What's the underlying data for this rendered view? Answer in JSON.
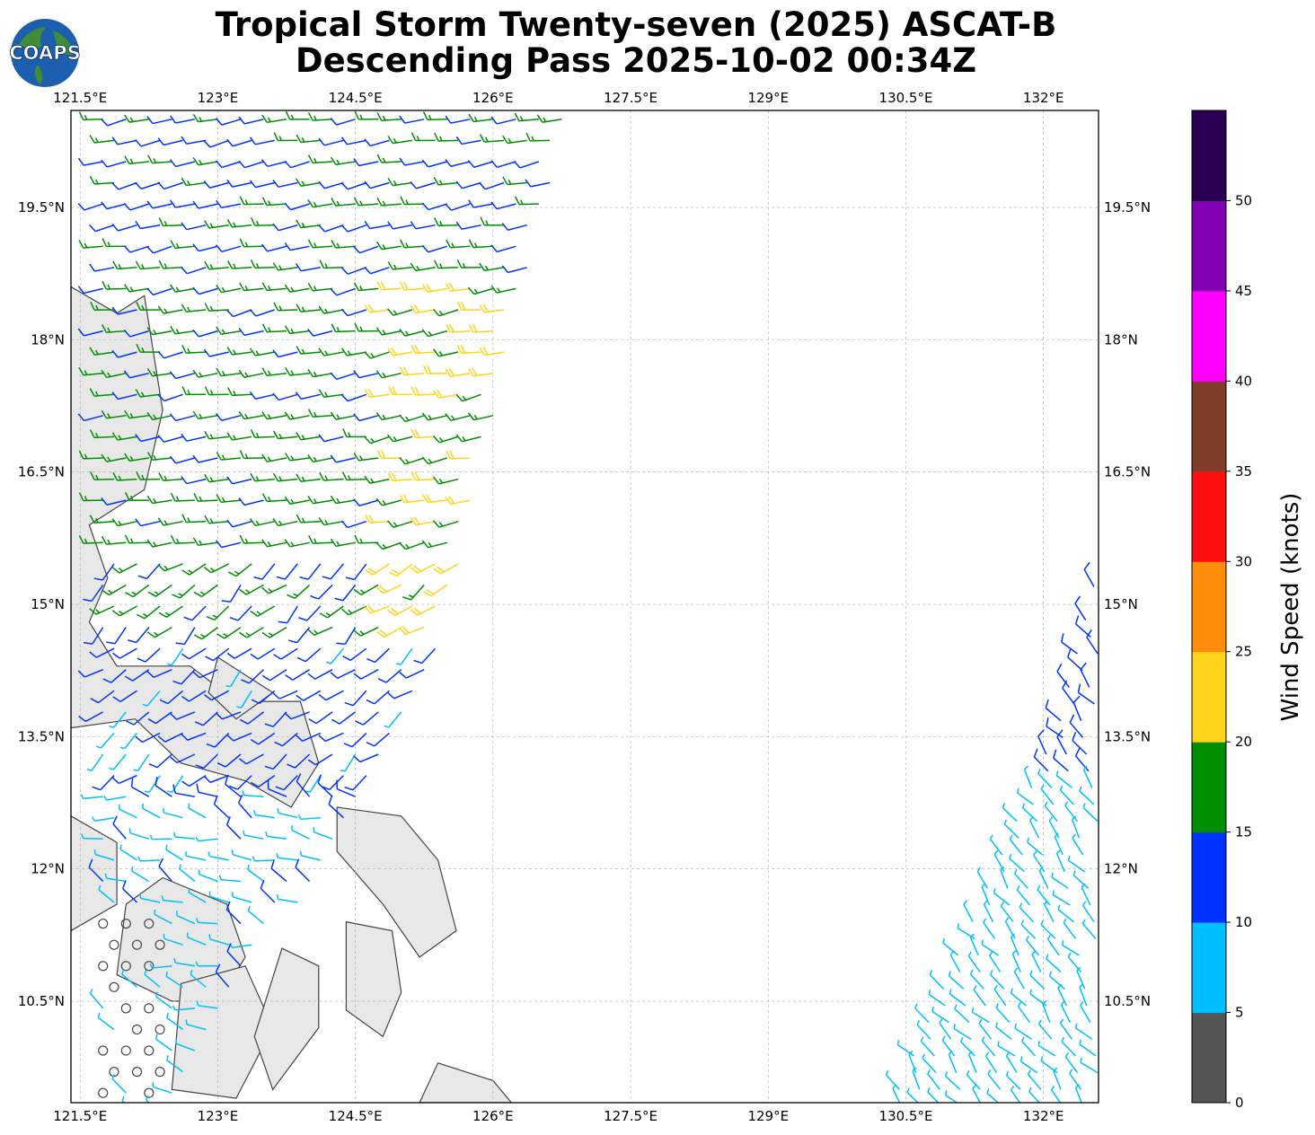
{
  "title_line1": "Tropical Storm Twenty-seven (2025) ASCAT-B",
  "title_line2": "Descending Pass 2025-10-02 00:34Z",
  "logo_text": "COAPS",
  "lon_ticks": [
    "121.5°E",
    "123°E",
    "124.5°E",
    "126°E",
    "127.5°E",
    "129°E",
    "130.5°E",
    "132°E"
  ],
  "lat_ticks": [
    "19.5°N",
    "18°N",
    "16.5°N",
    "15°N",
    "13.5°N",
    "12°N",
    "10.5°N"
  ],
  "colorbar": {
    "label": "Wind Speed (knots)",
    "ticks": [
      "0",
      "5",
      "10",
      "15",
      "20",
      "25",
      "30",
      "35",
      "40",
      "45",
      "50"
    ],
    "colors": [
      "#555555",
      "#00bfff",
      "#0033ff",
      "#008f00",
      "#ffd41a",
      "#ff8c0a",
      "#ff1010",
      "#803d29",
      "#ff00ff",
      "#8400b3",
      "#2b0054"
    ]
  },
  "map": {
    "lon_range": [
      121.4,
      132.6
    ],
    "lat_range": [
      9.35,
      20.6
    ],
    "land_color": "#e8e8e8",
    "coast_color": "#444444",
    "grid_style": "dashed"
  }
}
